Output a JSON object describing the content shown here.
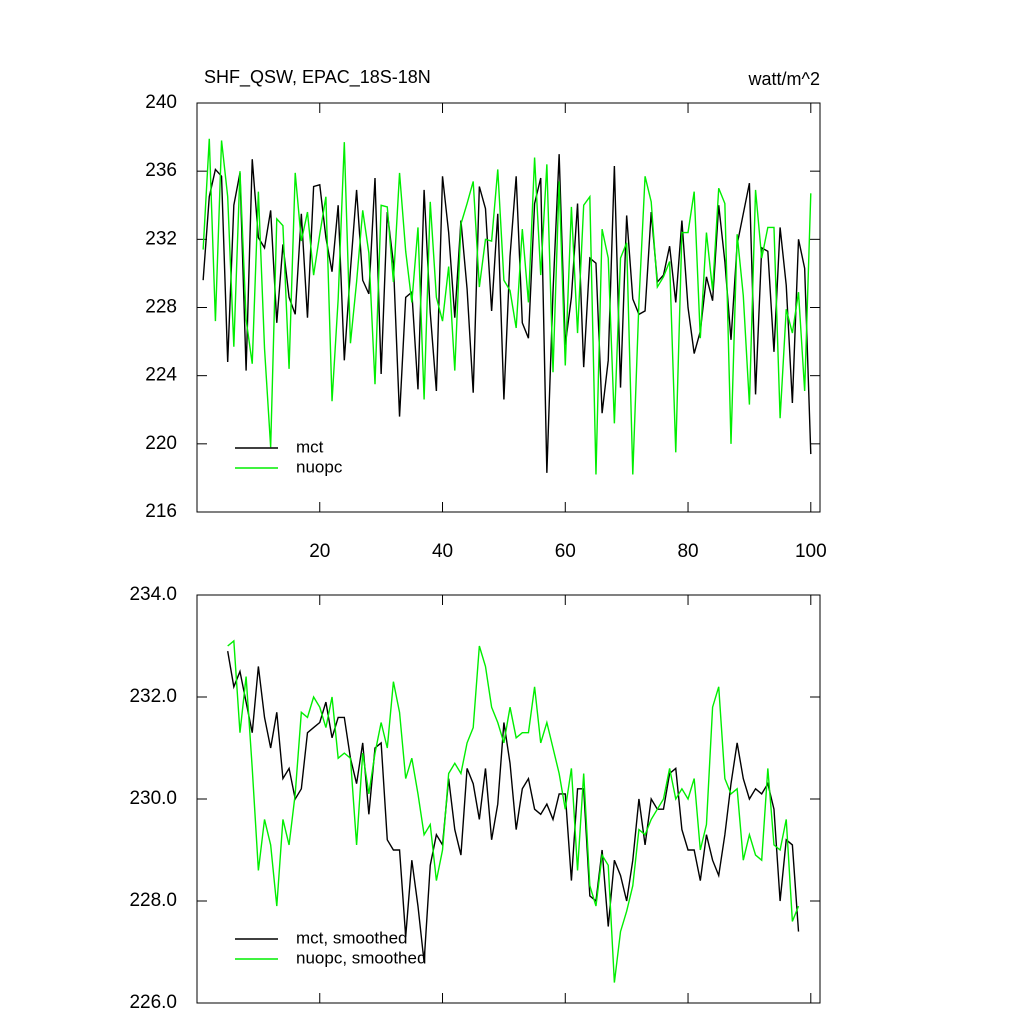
{
  "chart_data": [
    {
      "type": "line",
      "title": "SHF_QSW, EPAC_18S-18N",
      "y_units": "watt/m^2",
      "x": [
        1,
        2,
        3,
        4,
        5,
        6,
        7,
        8,
        9,
        10,
        11,
        12,
        13,
        14,
        15,
        16,
        17,
        18,
        19,
        20,
        21,
        22,
        23,
        24,
        25,
        26,
        27,
        28,
        29,
        30,
        31,
        32,
        33,
        34,
        35,
        36,
        37,
        38,
        39,
        40,
        41,
        42,
        43,
        44,
        45,
        46,
        47,
        48,
        49,
        50,
        51,
        52,
        53,
        54,
        55,
        56,
        57,
        58,
        59,
        60,
        61,
        62,
        63,
        64,
        65,
        66,
        67,
        68,
        69,
        70,
        71,
        72,
        73,
        74,
        75,
        76,
        77,
        78,
        79,
        80,
        81,
        82,
        83,
        84,
        85,
        86,
        87,
        88,
        89,
        90,
        91,
        92,
        93,
        94,
        95,
        96,
        97,
        98,
        99,
        100
      ],
      "series": [
        {
          "name": "mct",
          "color": "#000000",
          "values": [
            229.6,
            234.5,
            236.1,
            235.7,
            224.8,
            234,
            235.9,
            224.3,
            236.7,
            232.1,
            231.5,
            233.7,
            227.1,
            231.7,
            228.6,
            227.6,
            233.5,
            227.4,
            235.1,
            235.2,
            232.1,
            230.1,
            234,
            224.9,
            230.2,
            234.9,
            229.6,
            228.8,
            235.6,
            224.1,
            233.6,
            230.6,
            221.6,
            228.6,
            228.9,
            223.2,
            234.9,
            227.7,
            223.1,
            235.7,
            232.4,
            227.4,
            233.1,
            229.1,
            223,
            235.1,
            233.8,
            227.8,
            233.5,
            222.6,
            231,
            235.7,
            227.1,
            226.2,
            234.1,
            235.6,
            218.3,
            228.9,
            237,
            225.8,
            228.6,
            234.1,
            224.5,
            230.9,
            230.6,
            221.8,
            224.9,
            236.3,
            223.3,
            233.4,
            228.5,
            227.6,
            227.8,
            233.6,
            229.5,
            229.9,
            231.6,
            228.3,
            233.1,
            228,
            225.3,
            226.6,
            229.8,
            228.4,
            234,
            230.7,
            226.1,
            231.7,
            233.5,
            235.3,
            222.9,
            231.5,
            231.3,
            225.4,
            232.7,
            229.3,
            222.4,
            232,
            230.3,
            219.4
          ]
        },
        {
          "name": "nuopc",
          "color": "#00ee00",
          "values": [
            231.4,
            237.9,
            227.2,
            237.8,
            234.5,
            225.7,
            236,
            227.3,
            224.7,
            234.8,
            225.6,
            219.8,
            233.2,
            232.8,
            224.4,
            235.9,
            231.9,
            233.6,
            229.9,
            232.3,
            234.5,
            222.5,
            228.5,
            237.7,
            225.9,
            229.5,
            233.7,
            231.2,
            223.5,
            234,
            233.9,
            229.5,
            235.9,
            231.3,
            228.3,
            232.7,
            222.6,
            234.2,
            228.6,
            227.2,
            230.4,
            224.3,
            232.9,
            234.1,
            235.4,
            229.2,
            232,
            231.9,
            236.1,
            229.6,
            229,
            226.8,
            232.6,
            228.3,
            236.8,
            229.9,
            236.4,
            224.2,
            235.4,
            224.6,
            233.9,
            226.5,
            234,
            234.5,
            218.2,
            232.6,
            230.9,
            221.2,
            230.9,
            231.8,
            218.2,
            228.3,
            235.7,
            234.2,
            229.2,
            229.8,
            230.7,
            219.5,
            232.4,
            232.4,
            234.8,
            226.2,
            232.4,
            229,
            235,
            234.1,
            220,
            232.3,
            228.7,
            222.3,
            234.9,
            230.9,
            232.7,
            232.7,
            221.5,
            227.9,
            226.5,
            228.9,
            223.1,
            234.7
          ]
        }
      ],
      "xlim": [
        0,
        101.5
      ],
      "xticks": [
        20,
        40,
        60,
        80,
        100
      ],
      "show_xtick_labels": true,
      "ylim": [
        216,
        240
      ],
      "yticks": [
        216,
        220,
        224,
        228,
        232,
        236,
        240
      ],
      "legend": "lower left"
    },
    {
      "type": "line",
      "x": [
        5,
        6,
        7,
        8,
        9,
        10,
        11,
        12,
        13,
        14,
        15,
        16,
        17,
        18,
        19,
        20,
        21,
        22,
        23,
        24,
        25,
        26,
        27,
        28,
        29,
        30,
        31,
        32,
        33,
        34,
        35,
        36,
        37,
        38,
        39,
        40,
        41,
        42,
        43,
        44,
        45,
        46,
        47,
        48,
        49,
        50,
        51,
        52,
        53,
        54,
        55,
        56,
        57,
        58,
        59,
        60,
        61,
        62,
        63,
        64,
        65,
        66,
        67,
        68,
        69,
        70,
        71,
        72,
        73,
        74,
        75,
        76,
        77,
        78,
        79,
        80,
        81,
        82,
        83,
        84,
        85,
        86,
        87,
        88,
        89,
        90,
        91,
        92,
        93,
        94,
        95,
        96,
        97,
        98
      ],
      "series": [
        {
          "name": "mct, smoothed",
          "color": "#000000",
          "values": [
            232.9,
            232.2,
            232.5,
            231.9,
            231.3,
            232.6,
            231.6,
            231.0,
            231.7,
            230.4,
            230.6,
            230.0,
            230.2,
            231.3,
            231.4,
            231.5,
            231.9,
            231.2,
            231.6,
            231.6,
            230.8,
            230.3,
            231.1,
            229.7,
            231.0,
            231.1,
            229.2,
            229.0,
            229.0,
            227.3,
            228.8,
            227.9,
            226.8,
            228.7,
            229.3,
            229.1,
            230.4,
            229.4,
            228.9,
            230.6,
            230.3,
            229.6,
            230.6,
            229.2,
            229.9,
            231.5,
            230.7,
            229.4,
            230.2,
            230.4,
            229.8,
            229.7,
            229.9,
            229.6,
            230.1,
            230.1,
            228.4,
            230.2,
            230.2,
            228.1,
            228.0,
            229.0,
            227.5,
            228.8,
            228.5,
            228.0,
            228.8,
            230.0,
            229.1,
            230.0,
            229.8,
            229.8,
            230.5,
            230.6,
            229.4,
            229.0,
            229.0,
            228.4,
            229.3,
            228.8,
            228.5,
            229.3,
            230.3,
            231.1,
            230.4,
            230.0,
            230.2,
            230.1,
            230.3,
            229.8,
            228.0,
            229.2,
            229.1,
            227.4
          ]
        },
        {
          "name": "nuopc, smoothed",
          "color": "#00ee00",
          "values": [
            233.0,
            233.1,
            231.3,
            232.4,
            230.6,
            228.6,
            229.6,
            229.1,
            227.9,
            229.6,
            229.1,
            230.1,
            231.7,
            231.6,
            232.0,
            231.8,
            231.4,
            232.0,
            230.8,
            230.9,
            230.8,
            229.1,
            230.9,
            230.1,
            230.9,
            231.5,
            231.0,
            232.3,
            231.7,
            230.4,
            230.8,
            230.1,
            229.3,
            229.5,
            228.4,
            229.0,
            230.5,
            230.7,
            230.5,
            231.1,
            231.4,
            233.0,
            232.6,
            231.8,
            231.5,
            231.1,
            231.8,
            231.2,
            231.3,
            231.3,
            232.2,
            231.1,
            231.5,
            231.0,
            230.5,
            229.8,
            230.6,
            228.6,
            230.5,
            228.3,
            227.9,
            228.9,
            228.7,
            226.4,
            227.4,
            227.8,
            228.3,
            229.4,
            229.3,
            229.6,
            229.8,
            230.0,
            230.6,
            230.0,
            230.2,
            230.0,
            230.4,
            229.0,
            229.5,
            231.8,
            232.2,
            230.4,
            230.1,
            230.2,
            228.8,
            229.3,
            228.9,
            228.8,
            230.6,
            229.1,
            229.0,
            229.6,
            227.6,
            227.9
          ]
        }
      ],
      "xlim": [
        0,
        101.5
      ],
      "xticks": [
        20,
        40,
        60,
        80,
        100
      ],
      "show_xtick_labels": false,
      "ylim": [
        226,
        234
      ],
      "yticks": [
        {
          "value": 226,
          "label": "226.0"
        },
        {
          "value": 228,
          "label": "228.0"
        },
        {
          "value": 230,
          "label": "230.0"
        },
        {
          "value": 232,
          "label": "232.0"
        },
        {
          "value": 234,
          "label": "234.0"
        }
      ],
      "legend": "lower left"
    }
  ]
}
